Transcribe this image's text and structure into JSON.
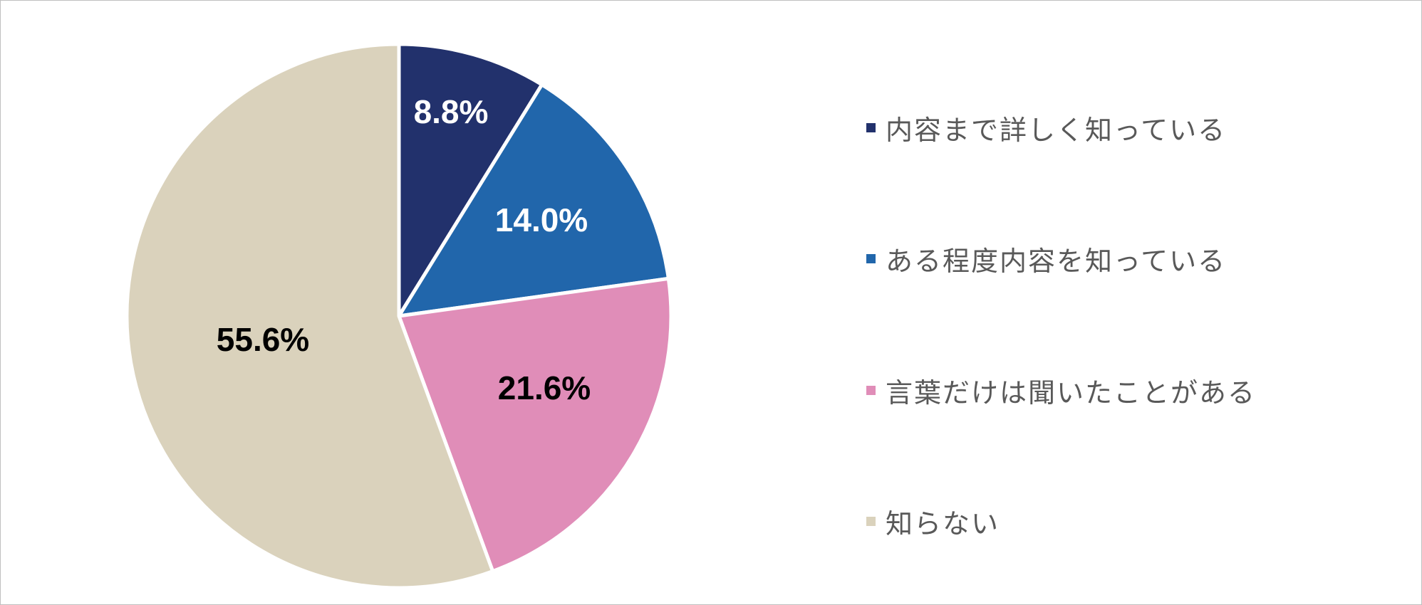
{
  "chart_data": {
    "type": "pie",
    "title": "",
    "categories": [
      "内容まで詳しく知っている",
      "ある程度内容を知っている",
      "言葉だけは聞いたことがある",
      "知らない"
    ],
    "values": [
      8.8,
      14.0,
      21.6,
      55.6
    ],
    "labels": [
      "8.8%",
      "14.0%",
      "21.6%",
      "55.6%"
    ],
    "colors": [
      "#22316C",
      "#2166AB",
      "#E08DB8",
      "#DAD2BC"
    ],
    "label_colors": [
      "#ffffff",
      "#ffffff",
      "#000000",
      "#000000"
    ],
    "legend_position": "right"
  }
}
